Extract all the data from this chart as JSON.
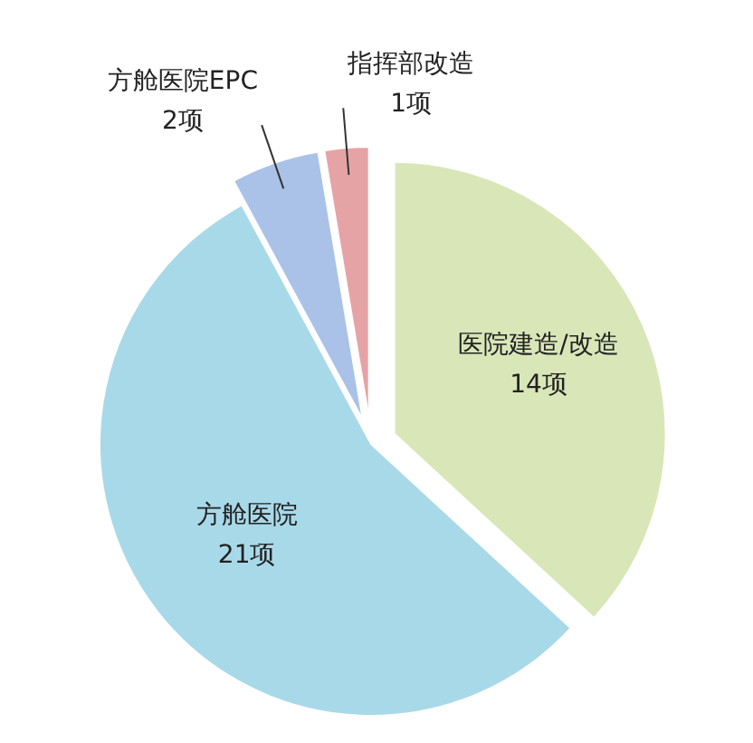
{
  "chart_data": {
    "type": "pie",
    "categories": [
      "指挥部改造",
      "医院建造/改造",
      "方舱医院",
      "方舱医院EPC"
    ],
    "values": [
      1,
      14,
      21,
      2
    ],
    "value_labels": [
      "1项",
      "14项",
      "21项",
      "2项"
    ],
    "colors": [
      "#e6a3a5",
      "#d9e6b8",
      "#a8d9e9",
      "#aac2e8"
    ]
  }
}
